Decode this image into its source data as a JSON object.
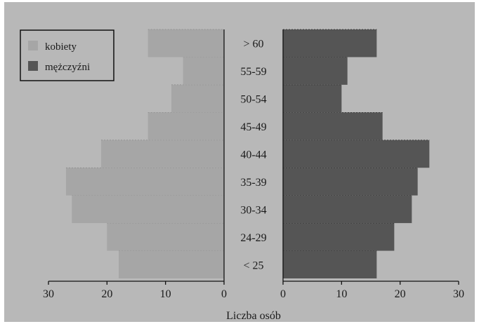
{
  "chart_data": {
    "type": "bar",
    "orientation": "horizontal-population-pyramid",
    "categories": [
      "< 25",
      "24-29",
      "30-34",
      "35-39",
      "40-44",
      "45-49",
      "50-54",
      "55-59",
      "> 60"
    ],
    "series": [
      {
        "name": "kobiety",
        "side": "left",
        "color": "#a6a6a6",
        "values": [
          18,
          20,
          26,
          27,
          21,
          13,
          9,
          7,
          13
        ]
      },
      {
        "name": "mężczyźni",
        "side": "right",
        "color": "#555555",
        "values": [
          16,
          19,
          22,
          23,
          25,
          17,
          10,
          11,
          16
        ]
      }
    ],
    "xlabel": "Liczba osób",
    "xlim": [
      0,
      30
    ],
    "xticks_left": [
      30,
      20,
      10,
      0
    ],
    "xticks_right": [
      0,
      10,
      20,
      30
    ],
    "legend": {
      "placement": "top-left",
      "entries": [
        "kobiety",
        "mężczyźni"
      ]
    },
    "grid": false
  }
}
